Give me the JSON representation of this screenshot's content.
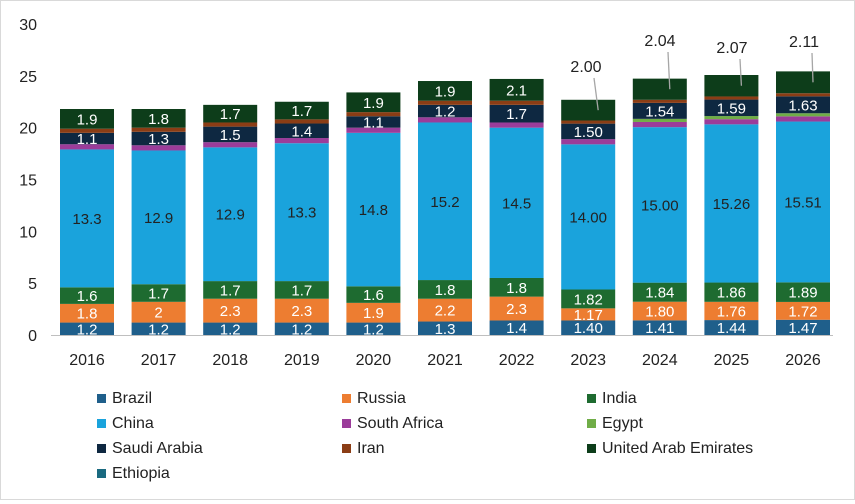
{
  "chart_data": {
    "type": "bar",
    "stacked": true,
    "categories": [
      "2016",
      "2017",
      "2018",
      "2019",
      "2020",
      "2021",
      "2022",
      "2023",
      "2024",
      "2025",
      "2026"
    ],
    "ylim": [
      0,
      30
    ],
    "yticks": [
      "0",
      "5",
      "10",
      "15",
      "20",
      "25",
      "30"
    ],
    "grid": false,
    "legend_position": "bottom",
    "series": [
      {
        "name": "Brazil",
        "color": "#1f5f8b",
        "values": [
          1.2,
          1.2,
          1.2,
          1.2,
          1.2,
          1.3,
          1.4,
          1.4,
          1.41,
          1.44,
          1.47
        ],
        "labels": [
          "1.2",
          "1.2",
          "1.2",
          "1.2",
          "1.2",
          "1.3",
          "1.4",
          "1.40",
          "1.41",
          "1.44",
          "1.47"
        ]
      },
      {
        "name": "Russia",
        "color": "#ed7d31",
        "values": [
          1.8,
          2,
          2.3,
          2.3,
          1.9,
          2.2,
          2.3,
          1.17,
          1.8,
          1.76,
          1.72
        ],
        "labels": [
          "1.8",
          "2",
          "2.3",
          "2.3",
          "1.9",
          "2.2",
          "2.3",
          "1.17",
          "1.80",
          "1.76",
          "1.72"
        ]
      },
      {
        "name": "India",
        "color": "#1e6b30",
        "values": [
          1.6,
          1.7,
          1.7,
          1.7,
          1.6,
          1.8,
          1.8,
          1.82,
          1.84,
          1.86,
          1.89
        ],
        "labels": [
          "1.6",
          "1.7",
          "1.7",
          "1.7",
          "1.6",
          "1.8",
          "1.8",
          "1.82",
          "1.84",
          "1.86",
          "1.89"
        ]
      },
      {
        "name": "China",
        "color": "#1aa3dc",
        "values": [
          13.3,
          12.9,
          12.9,
          13.3,
          14.8,
          15.2,
          14.5,
          14.0,
          15.0,
          15.26,
          15.51
        ],
        "labels": [
          "13.3",
          "12.9",
          "12.9",
          "13.3",
          "14.8",
          "15.2",
          "14.5",
          "14.00",
          "15.00",
          "15.26",
          "15.51"
        ]
      },
      {
        "name": "South Africa",
        "color": "#9b3c9a",
        "values": [
          0.5,
          0.5,
          0.5,
          0.5,
          0.5,
          0.5,
          0.5,
          0.5,
          0.5,
          0.5,
          0.5
        ],
        "labels": [
          "",
          "",
          "",
          "",
          "",
          "",
          "",
          "",
          "",
          "",
          ""
        ]
      },
      {
        "name": "Egypt",
        "color": "#70ad47",
        "values": [
          0,
          0,
          0,
          0,
          0,
          0,
          0,
          0,
          0.3,
          0.3,
          0.3
        ],
        "labels": [
          "",
          "",
          "",
          "",
          "",
          "",
          "",
          "",
          "",
          "",
          ""
        ]
      },
      {
        "name": "Saudi Arabia",
        "color": "#0e2841",
        "values": [
          1.1,
          1.3,
          1.5,
          1.4,
          1.1,
          1.2,
          1.7,
          1.5,
          1.54,
          1.59,
          1.63
        ],
        "labels": [
          "1.1",
          "1.3",
          "1.5",
          "1.4",
          "1.1",
          "1.2",
          "1.7",
          "1.50",
          "1.54",
          "1.59",
          "1.63"
        ]
      },
      {
        "name": "Iran",
        "color": "#8b3d15",
        "values": [
          0.4,
          0.4,
          0.4,
          0.4,
          0.4,
          0.4,
          0.4,
          0.3,
          0.3,
          0.3,
          0.3
        ],
        "labels": [
          "",
          "",
          "",
          "",
          "",
          "",
          "",
          "",
          "",
          "",
          ""
        ]
      },
      {
        "name": "United Arab Emirates",
        "color": "#0d3d1a",
        "values": [
          1.9,
          1.8,
          1.7,
          1.7,
          1.9,
          1.9,
          2.1,
          2.0,
          2.04,
          2.07,
          2.11
        ],
        "labels": [
          "1.9",
          "1.8",
          "1.7",
          "1.7",
          "1.9",
          "1.9",
          "2.1",
          "2.00",
          "2.04",
          "2.07",
          "2.11"
        ]
      },
      {
        "name": "Ethiopia",
        "color": "#1a6a80",
        "values": [
          0,
          0,
          0,
          0,
          0,
          0,
          0,
          0,
          0,
          0,
          0
        ],
        "labels": [
          "",
          "",
          "",
          "",
          "",
          "",
          "",
          "",
          "",
          "",
          ""
        ]
      }
    ],
    "callouts": {
      "series": "United Arab Emirates",
      "categories": [
        "2023",
        "2024",
        "2025",
        "2026"
      ]
    }
  }
}
